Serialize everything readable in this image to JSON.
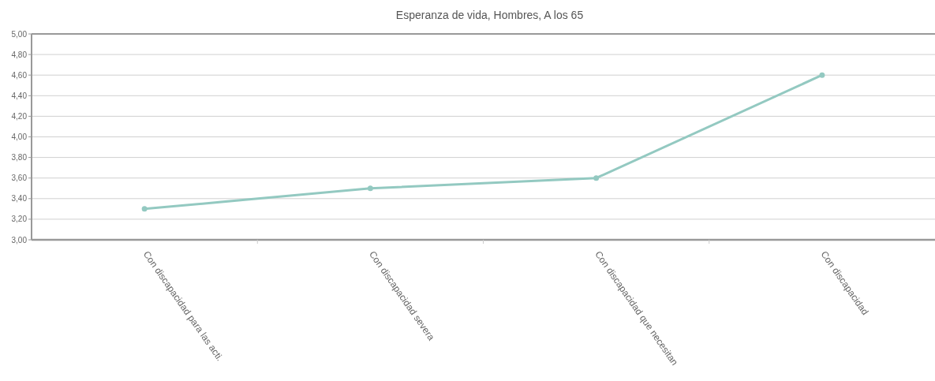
{
  "chart_data": {
    "type": "line",
    "title": "Esperanza de vida, Hombres, A los 65",
    "categories": [
      "Con discapacidad para las acti.",
      "Con discapacidad severa",
      "Con discapacidad que necesitan",
      "Con discapacidad"
    ],
    "series": [
      {
        "color": "#93c9c1",
        "values": [
          3.3,
          3.5,
          3.6,
          4.6
        ]
      }
    ],
    "ylim": [
      3,
      5
    ],
    "yticks": [
      {
        "value": 3,
        "label": "3,00"
      },
      {
        "value": 3.2,
        "label": "3,20"
      },
      {
        "value": 3.4,
        "label": "3,40"
      },
      {
        "value": 3.6,
        "label": "3,60"
      },
      {
        "value": 3.8,
        "label": "3,80"
      },
      {
        "value": 4,
        "label": "4,00"
      },
      {
        "value": 4.2,
        "label": "4,20"
      },
      {
        "value": 4.4,
        "label": "4,40"
      },
      {
        "value": 4.6,
        "label": "4,60"
      },
      {
        "value": 4.8,
        "label": "4,80"
      },
      {
        "value": 5,
        "label": "5,00"
      }
    ],
    "grid": "y",
    "marker": "circle"
  }
}
